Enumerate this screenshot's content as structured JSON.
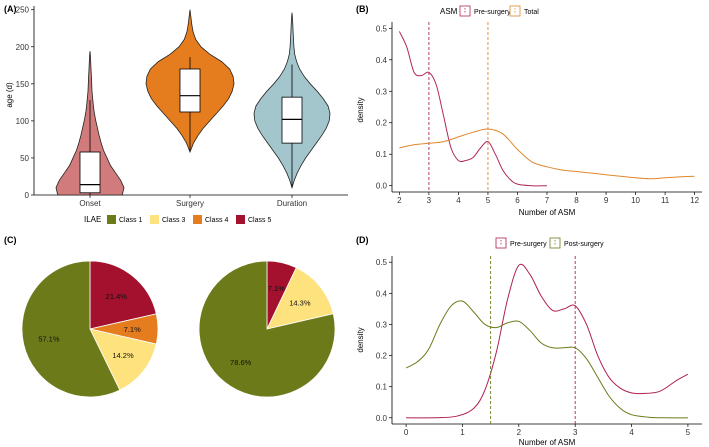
{
  "panels": {
    "a": {
      "label": "(A)"
    },
    "b": {
      "label": "(B)"
    },
    "c": {
      "label": "(C)"
    },
    "d": {
      "label": "(D)"
    }
  },
  "colors": {
    "onset": "#d27b7c",
    "surgery": "#e57d1f",
    "duration": "#a3c6cd",
    "class1": "#6d7a1a",
    "class3": "#fde27d",
    "class4": "#e57d1f",
    "class5": "#a3112e",
    "pre": "#b01f56",
    "post": "#6d7a1a",
    "pre_b": "#b0275e",
    "total": "#e0872e",
    "pre_light": "#e887ad"
  },
  "chart_data": [
    {
      "id": "A",
      "type": "violin",
      "xlabel": "",
      "ylabel": "age (d)",
      "ylim": [
        0,
        255
      ],
      "yticks": [
        0,
        50,
        100,
        150,
        200,
        250
      ],
      "categories": [
        "Onset",
        "Surgery",
        "Duration"
      ],
      "violins": [
        {
          "name": "Onset",
          "box": {
            "min": 0,
            "q1": 3,
            "median": 14,
            "q3": 58,
            "max": 128
          },
          "profile": [
            [
              0,
              0.95
            ],
            [
              10,
              1.0
            ],
            [
              20,
              0.9
            ],
            [
              30,
              0.75
            ],
            [
              40,
              0.6
            ],
            [
              50,
              0.5
            ],
            [
              60,
              0.4
            ],
            [
              70,
              0.33
            ],
            [
              80,
              0.27
            ],
            [
              90,
              0.22
            ],
            [
              100,
              0.17
            ],
            [
              110,
              0.13
            ],
            [
              120,
              0.1
            ],
            [
              130,
              0.08
            ],
            [
              140,
              0.06
            ],
            [
              150,
              0.05
            ],
            [
              160,
              0.04
            ],
            [
              170,
              0.03
            ],
            [
              180,
              0.02
            ],
            [
              190,
              0.01
            ],
            [
              194,
              0
            ]
          ]
        },
        {
          "name": "Surgery",
          "box": {
            "min": 60,
            "q1": 112,
            "median": 134,
            "q3": 170,
            "max": 186
          },
          "profile": [
            [
              58,
              0
            ],
            [
              70,
              0.08
            ],
            [
              80,
              0.18
            ],
            [
              90,
              0.3
            ],
            [
              100,
              0.45
            ],
            [
              110,
              0.6
            ],
            [
              120,
              0.75
            ],
            [
              130,
              0.88
            ],
            [
              140,
              0.96
            ],
            [
              150,
              1.0
            ],
            [
              160,
              0.98
            ],
            [
              170,
              0.9
            ],
            [
              180,
              0.72
            ],
            [
              190,
              0.45
            ],
            [
              200,
              0.25
            ],
            [
              210,
              0.13
            ],
            [
              220,
              0.07
            ],
            [
              230,
              0.04
            ],
            [
              240,
              0.02
            ],
            [
              250,
              0
            ]
          ]
        },
        {
          "name": "Duration",
          "box": {
            "min": 10,
            "q1": 70,
            "median": 102,
            "q3": 132,
            "max": 176
          },
          "profile": [
            [
              10,
              0
            ],
            [
              20,
              0.06
            ],
            [
              30,
              0.14
            ],
            [
              40,
              0.24
            ],
            [
              50,
              0.36
            ],
            [
              60,
              0.5
            ],
            [
              70,
              0.64
            ],
            [
              80,
              0.78
            ],
            [
              90,
              0.9
            ],
            [
              100,
              0.98
            ],
            [
              110,
              1.0
            ],
            [
              120,
              0.95
            ],
            [
              130,
              0.82
            ],
            [
              140,
              0.66
            ],
            [
              150,
              0.48
            ],
            [
              160,
              0.32
            ],
            [
              170,
              0.2
            ],
            [
              180,
              0.12
            ],
            [
              190,
              0.07
            ],
            [
              200,
              0.05
            ],
            [
              210,
              0.04
            ],
            [
              220,
              0.03
            ],
            [
              230,
              0.02
            ],
            [
              240,
              0.01
            ],
            [
              246,
              0
            ]
          ]
        }
      ]
    },
    {
      "id": "B",
      "type": "line",
      "xlabel": "Number of ASM",
      "ylabel": "density",
      "legend_title": "ASM",
      "legend_position": "top",
      "xlim": [
        1.75,
        12.25
      ],
      "ylim": [
        -0.02,
        0.52
      ],
      "xticks": [
        2,
        3,
        4,
        5,
        6,
        7,
        8,
        9,
        10,
        11,
        12
      ],
      "yticks": [
        0.0,
        0.1,
        0.2,
        0.3,
        0.4,
        0.5
      ],
      "series": [
        {
          "name": "Pre-surgery",
          "mean_line": 3,
          "x": [
            2,
            2.25,
            2.5,
            2.75,
            3,
            3.25,
            3.5,
            3.75,
            4,
            4.25,
            4.5,
            4.75,
            5,
            5.25,
            5.5,
            5.75,
            6,
            6.5,
            7
          ],
          "y": [
            0.49,
            0.44,
            0.36,
            0.35,
            0.36,
            0.32,
            0.22,
            0.12,
            0.08,
            0.08,
            0.09,
            0.12,
            0.14,
            0.1,
            0.05,
            0.02,
            0.005,
            0.0,
            0.0
          ]
        },
        {
          "name": "Total",
          "mean_line": 5,
          "x": [
            2,
            2.5,
            3,
            3.5,
            4,
            4.5,
            5,
            5.5,
            6,
            6.5,
            7,
            7.5,
            8,
            8.5,
            9,
            9.5,
            10,
            10.5,
            11,
            11.5,
            12
          ],
          "y": [
            0.12,
            0.13,
            0.135,
            0.14,
            0.155,
            0.17,
            0.18,
            0.165,
            0.115,
            0.075,
            0.06,
            0.05,
            0.045,
            0.04,
            0.035,
            0.03,
            0.025,
            0.022,
            0.025,
            0.028,
            0.03
          ]
        }
      ]
    },
    {
      "id": "C",
      "type": "pie",
      "legend_title": "ILAE",
      "legend_position": "top",
      "legend": [
        "Class 1",
        "Class 3",
        "Class 4",
        "Class 5"
      ],
      "pies": [
        {
          "slices": [
            {
              "name": "Class 5",
              "value": 21.4,
              "label": "21.4%"
            },
            {
              "name": "Class 4",
              "value": 7.1,
              "label": "7.1%"
            },
            {
              "name": "Class 3",
              "value": 14.2,
              "label": "14.2%"
            },
            {
              "name": "Class 1",
              "value": 57.1,
              "label": "57.1%"
            }
          ]
        },
        {
          "slices": [
            {
              "name": "Class 5",
              "value": 7.1,
              "label": "7.1%"
            },
            {
              "name": "Class 3",
              "value": 14.3,
              "label": "14.3%"
            },
            {
              "name": "Class 1",
              "value": 78.6,
              "label": "78.6%"
            }
          ]
        }
      ]
    },
    {
      "id": "D",
      "type": "line",
      "xlabel": "Number of ASM",
      "ylabel": "density",
      "legend_position": "top",
      "xlim": [
        -0.25,
        5.25
      ],
      "ylim": [
        -0.02,
        0.52
      ],
      "xticks": [
        0,
        1,
        2,
        3,
        4,
        5
      ],
      "yticks": [
        0.0,
        0.1,
        0.2,
        0.3,
        0.4,
        0.5
      ],
      "series": [
        {
          "name": "Pre-surgery",
          "mean_line": 3,
          "x": [
            0,
            0.5,
            0.9,
            1.2,
            1.4,
            1.6,
            1.8,
            2.0,
            2.2,
            2.4,
            2.6,
            2.8,
            3.0,
            3.2,
            3.4,
            3.6,
            3.8,
            4.0,
            4.2,
            4.5,
            4.8,
            5.0
          ],
          "y": [
            0.0,
            0.0,
            0.005,
            0.03,
            0.09,
            0.21,
            0.38,
            0.49,
            0.46,
            0.39,
            0.345,
            0.35,
            0.36,
            0.3,
            0.2,
            0.13,
            0.095,
            0.08,
            0.078,
            0.085,
            0.12,
            0.14
          ]
        },
        {
          "name": "Post-surgery",
          "mean_line": 1.5,
          "x": [
            0,
            0.2,
            0.4,
            0.6,
            0.8,
            1.0,
            1.2,
            1.4,
            1.6,
            1.8,
            2.0,
            2.2,
            2.4,
            2.6,
            2.8,
            3.0,
            3.2,
            3.4,
            3.6,
            3.8,
            4.0,
            4.3,
            4.6,
            5.0
          ],
          "y": [
            0.16,
            0.18,
            0.22,
            0.3,
            0.36,
            0.375,
            0.34,
            0.3,
            0.29,
            0.305,
            0.31,
            0.28,
            0.24,
            0.225,
            0.225,
            0.225,
            0.19,
            0.13,
            0.07,
            0.03,
            0.01,
            0.002,
            0.0,
            0.0
          ]
        }
      ]
    }
  ]
}
